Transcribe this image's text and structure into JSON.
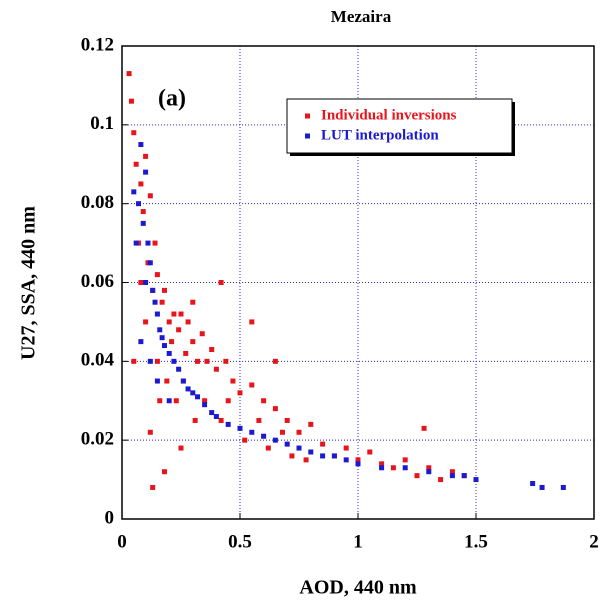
{
  "chart_data": {
    "type": "scatter",
    "title": "Mezaira",
    "annotation": "(a)",
    "x_label": "AOD, 440 nm",
    "y_label": "U27, SSA, 440 nm",
    "xlim": [
      0,
      2
    ],
    "xticks": [
      0,
      0.5,
      1,
      1.5,
      2
    ],
    "ylim": [
      0,
      0.12
    ],
    "yticks": [
      0,
      0.02,
      0.04,
      0.06,
      0.08,
      0.1,
      0.12
    ],
    "grid": true,
    "legend": "upper right",
    "series": [
      {
        "name": "Individual inversions",
        "color": "#e8141c",
        "x": [
          0.03,
          0.04,
          0.05,
          0.05,
          0.06,
          0.07,
          0.08,
          0.08,
          0.09,
          0.1,
          0.1,
          0.11,
          0.12,
          0.12,
          0.13,
          0.14,
          0.15,
          0.15,
          0.16,
          0.17,
          0.18,
          0.19,
          0.2,
          0.21,
          0.22,
          0.23,
          0.24,
          0.25,
          0.26,
          0.27,
          0.28,
          0.3,
          0.31,
          0.32,
          0.34,
          0.35,
          0.36,
          0.38,
          0.4,
          0.42,
          0.44,
          0.45,
          0.47,
          0.5,
          0.52,
          0.55,
          0.58,
          0.6,
          0.62,
          0.65,
          0.68,
          0.7,
          0.72,
          0.75,
          0.78,
          0.8,
          0.85,
          0.9,
          0.95,
          1.0,
          1.05,
          1.1,
          1.15,
          1.2,
          1.25,
          1.3,
          1.35,
          1.4,
          1.45,
          0.13,
          0.18,
          0.25,
          0.3,
          0.42,
          0.55,
          0.65,
          1.28
        ],
        "values": [
          0.113,
          0.106,
          0.04,
          0.098,
          0.09,
          0.07,
          0.085,
          0.06,
          0.078,
          0.092,
          0.05,
          0.065,
          0.082,
          0.022,
          0.058,
          0.07,
          0.04,
          0.062,
          0.03,
          0.055,
          0.058,
          0.035,
          0.05,
          0.045,
          0.052,
          0.03,
          0.048,
          0.052,
          0.035,
          0.042,
          0.05,
          0.045,
          0.025,
          0.04,
          0.047,
          0.03,
          0.04,
          0.043,
          0.038,
          0.025,
          0.04,
          0.03,
          0.035,
          0.032,
          0.02,
          0.034,
          0.025,
          0.03,
          0.018,
          0.028,
          0.022,
          0.025,
          0.016,
          0.022,
          0.015,
          0.024,
          0.019,
          0.016,
          0.018,
          0.015,
          0.017,
          0.014,
          0.013,
          0.015,
          0.011,
          0.013,
          0.01,
          0.012,
          0.011,
          0.008,
          0.012,
          0.018,
          0.055,
          0.06,
          0.05,
          0.04,
          0.023
        ]
      },
      {
        "name": "LUT interpolation",
        "color": "#1a1ad0",
        "x": [
          0.05,
          0.06,
          0.07,
          0.08,
          0.09,
          0.1,
          0.1,
          0.11,
          0.12,
          0.13,
          0.14,
          0.15,
          0.16,
          0.17,
          0.18,
          0.2,
          0.22,
          0.24,
          0.26,
          0.28,
          0.3,
          0.32,
          0.35,
          0.38,
          0.4,
          0.45,
          0.5,
          0.55,
          0.6,
          0.65,
          0.7,
          0.75,
          0.8,
          0.85,
          0.9,
          0.95,
          1.0,
          1.1,
          1.2,
          1.3,
          1.4,
          1.45,
          1.5,
          1.74,
          1.78,
          1.87,
          0.08,
          0.12,
          0.15,
          0.2
        ],
        "values": [
          0.083,
          0.07,
          0.08,
          0.095,
          0.075,
          0.088,
          0.06,
          0.07,
          0.065,
          0.058,
          0.055,
          0.052,
          0.048,
          0.046,
          0.044,
          0.042,
          0.04,
          0.038,
          0.035,
          0.033,
          0.032,
          0.031,
          0.029,
          0.027,
          0.026,
          0.024,
          0.023,
          0.022,
          0.021,
          0.02,
          0.019,
          0.018,
          0.017,
          0.016,
          0.016,
          0.015,
          0.014,
          0.013,
          0.013,
          0.012,
          0.011,
          0.011,
          0.01,
          0.009,
          0.008,
          0.008,
          0.045,
          0.04,
          0.035,
          0.03
        ]
      }
    ]
  }
}
